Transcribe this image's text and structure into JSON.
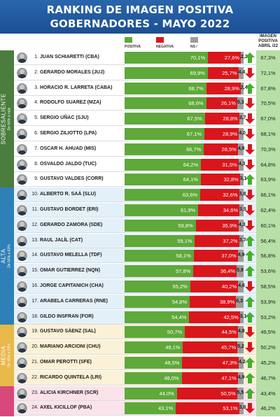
{
  "header": {
    "title_line1": "RANKING DE IMAGEN POSITIVA",
    "title_line2": "GOBERNADORES - MAYO 2022"
  },
  "legend": {
    "positive": "POSITIVA",
    "negative": "NEGATIVA",
    "ns_nc": "NS / NC"
  },
  "image_column_header": [
    "IMAGEN",
    "POSITIVA",
    "ABRIL /22"
  ],
  "colors": {
    "positive": "#5fa83a",
    "negative": "#d9161c",
    "ns_nc": "#9c9c9c",
    "up_arrow": "#43b02a",
    "down_arrow": "#d9161c",
    "header_bg": "#1c4f93",
    "sobresaliente": "#4a7d3e",
    "alta": "#2f80b6",
    "media": "#e8b84a",
    "baja": "#d9487a"
  },
  "groups": [
    {
      "label": "SOBRESALIENTE",
      "sub": "De 64% a más",
      "start": 0,
      "end": 8
    },
    {
      "label": "ALTA",
      "sub": "De 54% a 63%",
      "start": 9,
      "end": 17
    },
    {
      "label": "MEDIA",
      "sub": "De 45% a 53%",
      "start": 18,
      "end": 21
    },
    {
      "label": "",
      "sub": "",
      "start": 22,
      "end": 23
    }
  ],
  "chart_data": {
    "type": "bar",
    "stacked": true,
    "orientation": "horizontal",
    "title": "RANKING DE IMAGEN POSITIVA GOBERNADORES - MAYO 2022",
    "categories": [
      "JUAN SCHIARETTI (CBA)",
      "GERARDO MORALES (JUJ)",
      "HORACIO R. LARRETA (CABA)",
      "RODOLFO SUAREZ (MZA)",
      "SERGIO UÑAC (SJU)",
      "SERGIO ZILIOTTO (LPA)",
      "OSCAR H. AHUAD (MIS)",
      "OSVALDO JALDO (TUC)",
      "GUSTAVO VALDES (CORR)",
      "ALBERTO R. SAÁ (SLU)",
      "GUSTAVO BORDET (ERI)",
      "GERARDO ZAMORA (SDE)",
      "RAUL JALÍL (CAT)",
      "GUSTAVO MELELLA (TDF)",
      "OMAR GUTIERREZ (NQN)",
      "JORGE CAPITANICH (CHA)",
      "ARABELA CARRERAS (RNE)",
      "GILDO INSFRAN (FOR)",
      "GUSTAVO SÁENZ (SAL)",
      "MARIANO ARCIONI (CHU)",
      "OMAR PEROTTI (SFE)",
      "RICARDO QUINTELA (LRI)",
      "ALICIA KIRCHNER (SCR)",
      "AXEL KICILLOF (PBA)"
    ],
    "ranks": [
      "1.",
      "2.",
      "3.",
      "4.",
      "5.",
      "6.",
      "7.",
      "8.",
      "9.",
      "10.",
      "11.",
      "12.",
      "13.",
      "14.",
      "15.",
      "16.",
      "17.",
      "18.",
      "19.",
      "20.",
      "21.",
      "22.",
      "23.",
      "24."
    ],
    "series": [
      {
        "name": "POSITIVA",
        "values": [
          70.1,
          69.9,
          68.7,
          68.6,
          67.5,
          67.1,
          66.7,
          64.2,
          64.1,
          63.6,
          61.9,
          59.8,
          59.1,
          58.1,
          57.8,
          55.2,
          54.8,
          54.4,
          50.7,
          49.1,
          48.5,
          48.0,
          44.0,
          43.1
        ],
        "labels": [
          "70,1%",
          "69,9%",
          "68,7%",
          "68,6%",
          "67,5%",
          "67,1%",
          "66,7%",
          "64,2%",
          "64,1%",
          "63,6%",
          "61,9%",
          "59,8%",
          "59,1%",
          "58,1%",
          "57,8%",
          "55,2%",
          "54,8%",
          "54,4%",
          "50,7%",
          "49,1%",
          "48,5%",
          "48,0%",
          "44,0%",
          "43,1%"
        ]
      },
      {
        "name": "NEGATIVA",
        "values": [
          27.6,
          25.7,
          28.9,
          26.1,
          28.8,
          28.9,
          28.5,
          31.5,
          32.8,
          32.6,
          34.6,
          35.9,
          37.2,
          37.0,
          36.4,
          40.2,
          38.9,
          42.5,
          44.5,
          45.7,
          47.3,
          47.1,
          50.5,
          53.1
        ],
        "labels": [
          "27,6%",
          "25,7%",
          "28,9%",
          "26,1%",
          "28,8%",
          "28,9%",
          "28,5%",
          "31,5%",
          "32,8%",
          "32,6%",
          "34,6%",
          "35,9%",
          "37,2%",
          "37,0%",
          "36,4%",
          "40,2%",
          "38,9%",
          "42,5%",
          "44,5%",
          "45,7%",
          "47,3%",
          "47,1%",
          "50,5%",
          "53,1%"
        ]
      },
      {
        "name": "NS / NC",
        "values": [
          2.3,
          4.4,
          2.4,
          5.3,
          3.7,
          4.0,
          4.8,
          4.3,
          3.1,
          3.8,
          3.5,
          4.3,
          3.7,
          4.9,
          5.8,
          4.6,
          6.3,
          3.1,
          4.8,
          5.2,
          4.2,
          4.9,
          5.5,
          3.8
        ],
        "labels": [
          "2,3",
          "4,4",
          "2,4",
          "5,3",
          "3,7",
          "4,0",
          "4,8",
          "4,3",
          "3,1",
          "3,8",
          "3,5",
          "4,3",
          "3,7",
          "4,9",
          "5,8",
          "4,6",
          "6,3",
          "3,1",
          "4,8",
          "5,2",
          "4,2",
          "4,9",
          "5,5",
          "3,8"
        ]
      }
    ],
    "trend": [
      "up",
      "down",
      "up",
      "down",
      "down",
      "down",
      "down",
      "down",
      "up",
      "down",
      "down",
      "down",
      "up",
      "up",
      "up",
      "down",
      "up",
      "up",
      "down",
      "down",
      "up",
      "up",
      "up",
      "down"
    ],
    "previous": {
      "name": "IMAGEN POSITIVA ABRIL /22",
      "values": [
        67.3,
        72.1,
        67.8,
        70.5,
        67.0,
        68.1,
        70.3,
        64.8,
        63.9,
        66.1,
        62.4,
        60.1,
        56.4,
        56.8,
        53.6,
        58.5,
        53.9,
        53.2,
        49.5,
        50.2,
        45.2,
        46.7,
        43.4,
        46.2
      ],
      "labels": [
        "67,3%",
        "72,1%",
        "67,8%",
        "70,5%",
        "67,0%",
        "68,1%",
        "70,3%",
        "64,8%",
        "63,9%",
        "66,1%",
        "62,4%",
        "60,1%",
        "56,4%",
        "56,8%",
        "53,6%",
        "58,5%",
        "53,9%",
        "53,2%",
        "49,5%",
        "50,2%",
        "45,2%",
        "46,7%",
        "43,4%",
        "46,2%"
      ]
    },
    "xlim": [
      0,
      100
    ],
    "legend_position": "top"
  }
}
